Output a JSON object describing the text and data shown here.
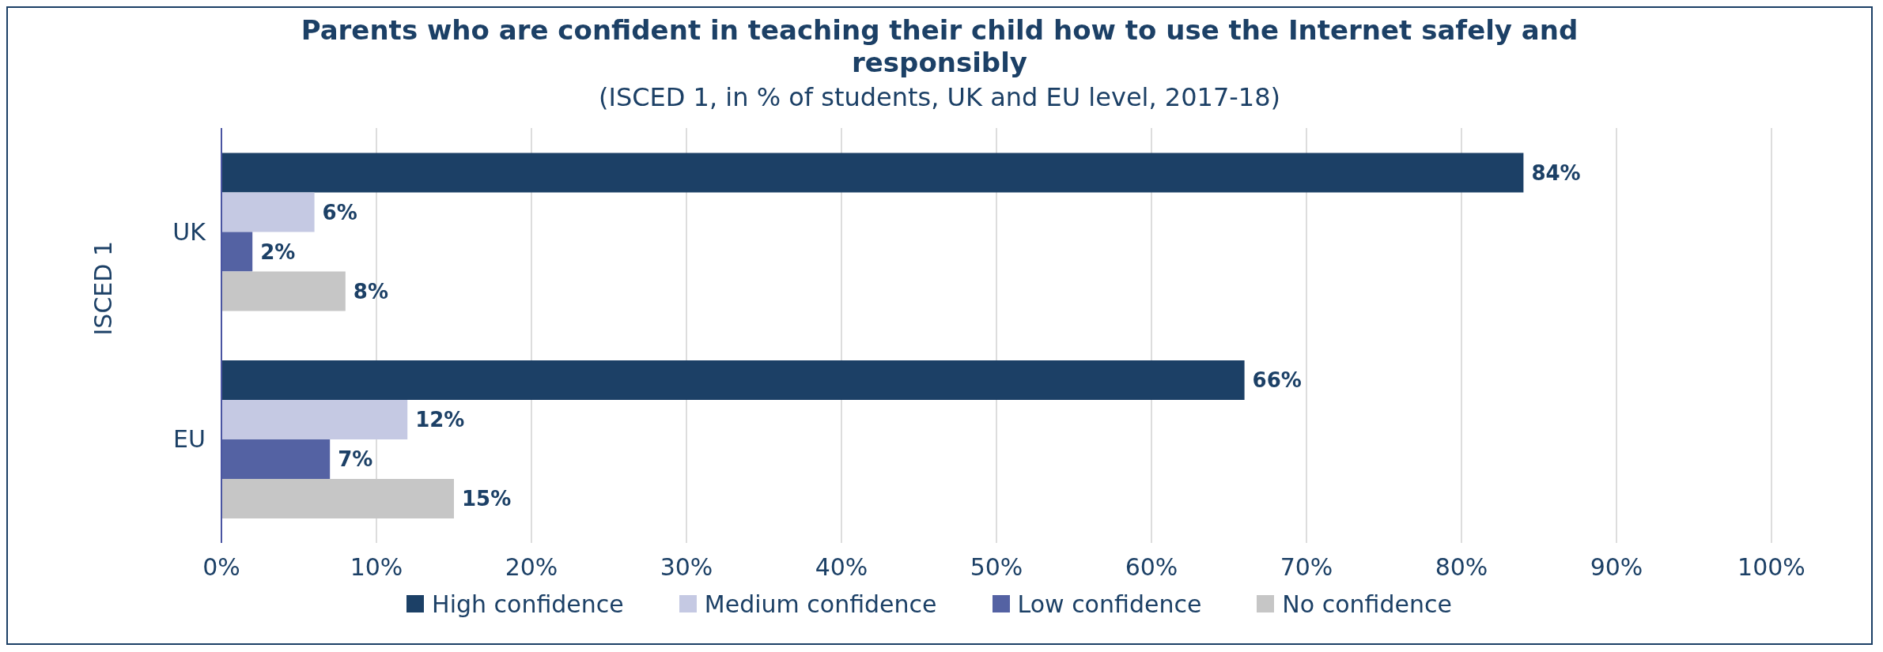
{
  "chart_data": {
    "type": "bar",
    "orientation": "horizontal",
    "title": "Parents who are confident in teaching their child how to use the Internet safely and responsibly",
    "subtitle": "(ISCED 1, in % of students, UK and EU level, 2017-18)",
    "ylabel": "ISCED 1",
    "categories": [
      "UK",
      "EU"
    ],
    "series": [
      {
        "name": "High confidence",
        "color": "#1c4066",
        "values": [
          84,
          66
        ],
        "value_labels": [
          "84%",
          "66%"
        ]
      },
      {
        "name": "Medium confidence",
        "color": "#c5c9e3",
        "values": [
          6,
          12
        ],
        "value_labels": [
          "6%",
          "12%"
        ]
      },
      {
        "name": "Low confidence",
        "color": "#5462a3",
        "values": [
          2,
          7
        ],
        "value_labels": [
          "2%",
          "7%"
        ]
      },
      {
        "name": "No confidence",
        "color": "#c6c6c6",
        "values": [
          8,
          15
        ],
        "value_labels": [
          "8%",
          "15%"
        ]
      }
    ],
    "xlim": [
      0,
      100
    ],
    "xticks": [
      {
        "value": 0,
        "label": "0%"
      },
      {
        "value": 10,
        "label": "10%"
      },
      {
        "value": 20,
        "label": "20%"
      },
      {
        "value": 30,
        "label": "30%"
      },
      {
        "value": 40,
        "label": "40%"
      },
      {
        "value": 50,
        "label": "50%"
      },
      {
        "value": 60,
        "label": "60%"
      },
      {
        "value": 70,
        "label": "70%"
      },
      {
        "value": 80,
        "label": "80%"
      },
      {
        "value": 90,
        "label": "90%"
      },
      {
        "value": 100,
        "label": "100%"
      }
    ],
    "grid": "x",
    "legend": "bottom"
  }
}
